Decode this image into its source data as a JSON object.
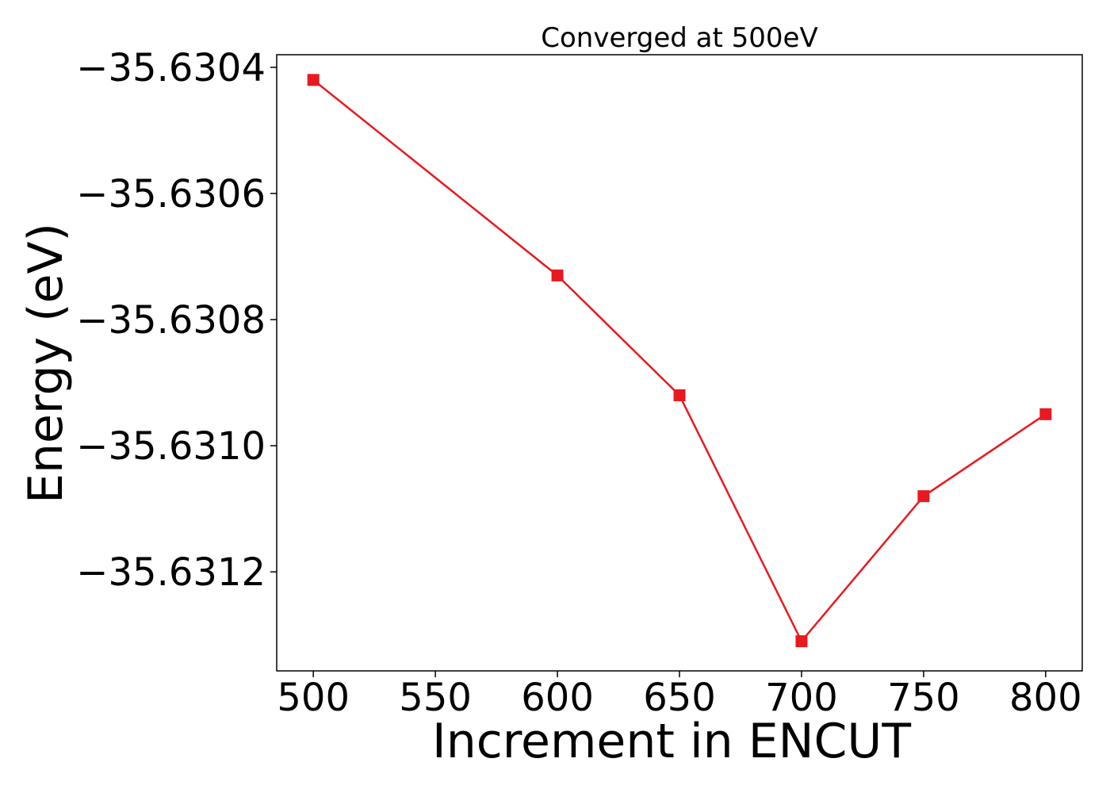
{
  "chart_data": {
    "type": "line",
    "title": "Converged at 500eV",
    "xlabel": "Increment in ENCUT",
    "ylabel": "Energy (eV)",
    "x": [
      500,
      600,
      650,
      700,
      750,
      800
    ],
    "series": [
      {
        "values": [
          -35.63042,
          -35.63073,
          -35.63092,
          -35.63131,
          -35.63108,
          -35.63095
        ],
        "color": "#e8191f",
        "marker": "square"
      }
    ],
    "xlim": [
      485,
      815
    ],
    "ylim": [
      -35.631357,
      -35.63038
    ],
    "xticks": [
      500,
      550,
      600,
      650,
      700,
      750,
      800
    ],
    "xtick_labels": [
      "500",
      "550",
      "600",
      "650",
      "700",
      "750",
      "800"
    ],
    "yticks": [
      -35.6304,
      -35.6306,
      -35.6308,
      -35.631,
      -35.6312
    ],
    "ytick_labels": [
      "−35.6304",
      "−35.6306",
      "−35.6308",
      "−35.6310",
      "−35.6312"
    ],
    "grid": false,
    "legend": "none"
  }
}
